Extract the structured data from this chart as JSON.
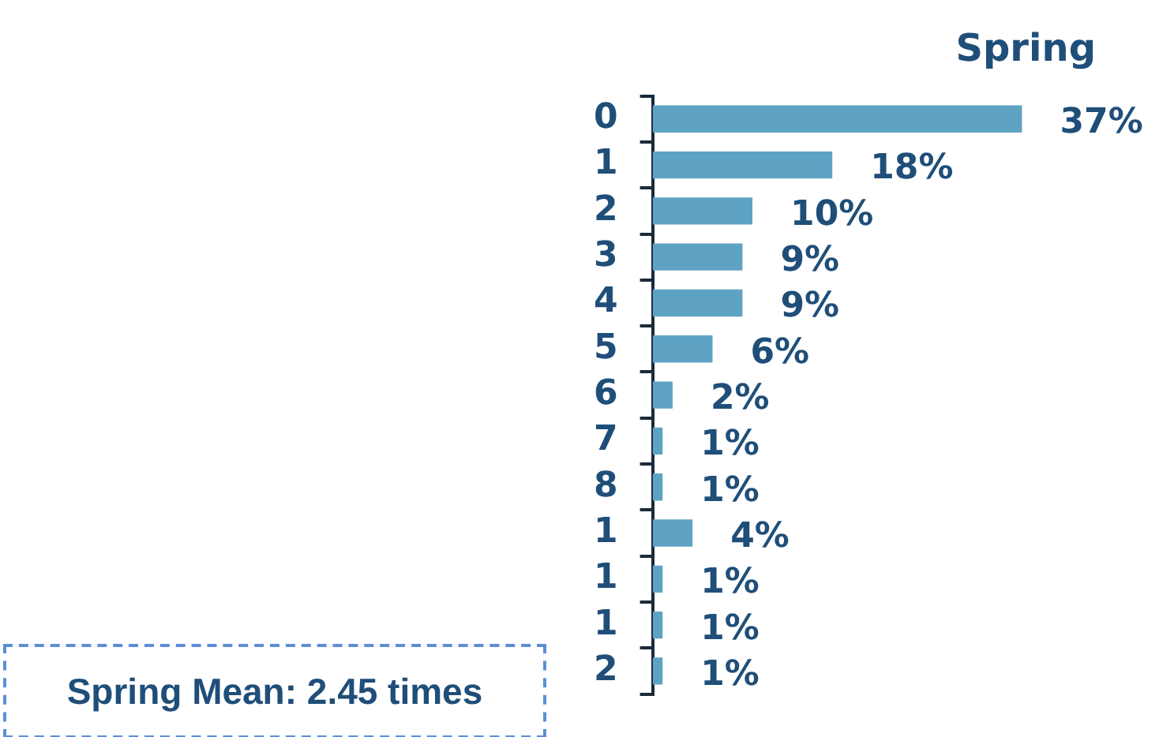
{
  "chart_data": {
    "type": "bar",
    "orientation": "horizontal",
    "title": "Spring",
    "categories": [
      "0",
      "1",
      "2",
      "3",
      "4",
      "5",
      "6",
      "7",
      "8",
      "1",
      "1",
      "1",
      "2"
    ],
    "values": [
      37,
      18,
      10,
      9,
      9,
      6,
      2,
      1,
      1,
      4,
      1,
      1,
      1
    ],
    "value_labels": [
      "37%",
      "18%",
      "10%",
      "9%",
      "9%",
      "6%",
      "2%",
      "1%",
      "1%",
      "4%",
      "1%",
      "1%",
      "1%"
    ],
    "color": "#5fa3c4",
    "grid": false,
    "legend": false,
    "tick_labels": "y",
    "annotations": [
      "Spring Mean: 2.45 times"
    ]
  }
}
